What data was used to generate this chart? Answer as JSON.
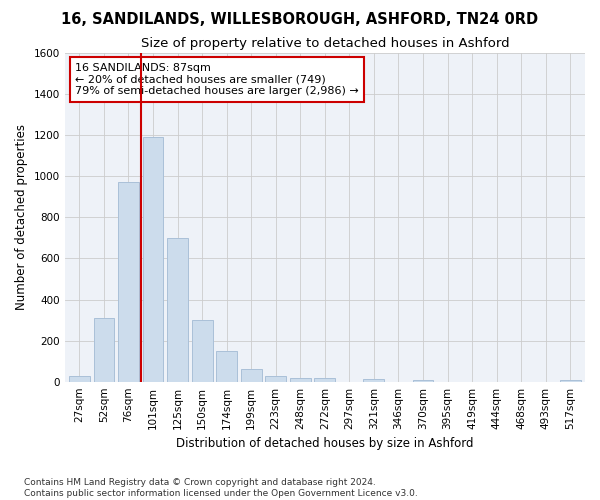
{
  "title_line1": "16, SANDILANDS, WILLESBOROUGH, ASHFORD, TN24 0RD",
  "title_line2": "Size of property relative to detached houses in Ashford",
  "xlabel": "Distribution of detached houses by size in Ashford",
  "ylabel": "Number of detached properties",
  "categories": [
    "27sqm",
    "52sqm",
    "76sqm",
    "101sqm",
    "125sqm",
    "150sqm",
    "174sqm",
    "199sqm",
    "223sqm",
    "248sqm",
    "272sqm",
    "297sqm",
    "321sqm",
    "346sqm",
    "370sqm",
    "395sqm",
    "419sqm",
    "444sqm",
    "468sqm",
    "493sqm",
    "517sqm"
  ],
  "values": [
    30,
    310,
    970,
    1190,
    700,
    300,
    150,
    60,
    30,
    20,
    20,
    0,
    15,
    0,
    10,
    0,
    0,
    0,
    0,
    0,
    10
  ],
  "bar_color": "#ccdcec",
  "bar_edgecolor": "#aac0d8",
  "vline_color": "#cc0000",
  "vline_x": 2.5,
  "annotation_text": "16 SANDILANDS: 87sqm\n← 20% of detached houses are smaller (749)\n79% of semi-detached houses are larger (2,986) →",
  "annotation_box_edgecolor": "#cc0000",
  "annotation_box_facecolor": "#ffffff",
  "ylim": [
    0,
    1600
  ],
  "yticks": [
    0,
    200,
    400,
    600,
    800,
    1000,
    1200,
    1400,
    1600
  ],
  "grid_color": "#cccccc",
  "background_color": "#eef2f8",
  "footnote": "Contains HM Land Registry data © Crown copyright and database right 2024.\nContains public sector information licensed under the Open Government Licence v3.0.",
  "title_fontsize": 10.5,
  "subtitle_fontsize": 9.5,
  "axis_label_fontsize": 8.5,
  "tick_fontsize": 7.5,
  "annotation_fontsize": 8,
  "footnote_fontsize": 6.5
}
